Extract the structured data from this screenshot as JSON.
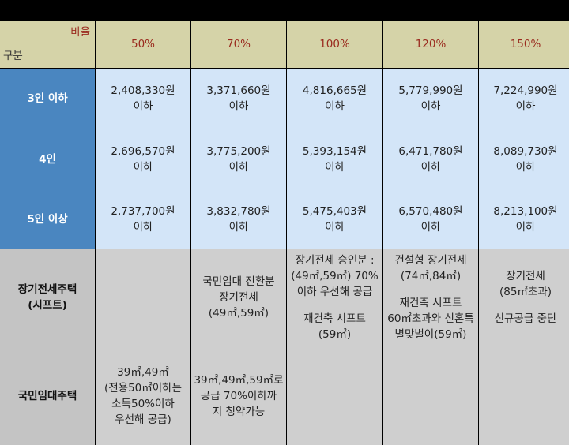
{
  "header": {
    "ratio_label": "비율",
    "category_label": "구분",
    "columns": [
      "50%",
      "70%",
      "100%",
      "120%",
      "150%"
    ]
  },
  "income_rows": [
    {
      "label": "3인 이하",
      "values": [
        [
          "2,408,330원",
          "이하"
        ],
        [
          "3,371,660원",
          "이하"
        ],
        [
          "4,816,665원",
          "이하"
        ],
        [
          "5,779,990원",
          "이하"
        ],
        [
          "7,224,990원",
          "이하"
        ]
      ]
    },
    {
      "label": "4인",
      "values": [
        [
          "2,696,570원",
          "이하"
        ],
        [
          "3,775,200원",
          "이하"
        ],
        [
          "5,393,154원",
          "이하"
        ],
        [
          "6,471,780원",
          "이하"
        ],
        [
          "8,089,730원",
          "이하"
        ]
      ]
    },
    {
      "label": "5인 이상",
      "values": [
        [
          "2,737,700원",
          "이하"
        ],
        [
          "3,832,780원",
          "이하"
        ],
        [
          "5,475,403원",
          "이하"
        ],
        [
          "6,570,480원",
          "이하"
        ],
        [
          "8,213,100원",
          "이하"
        ]
      ]
    }
  ],
  "shift_row": {
    "label_lines": [
      "장기전세주택",
      "(시프트)"
    ],
    "c70": [
      "국민임대 전환분",
      "장기전세",
      "(49㎡,59㎡)"
    ],
    "c100_a": [
      "장기전세 승인분 :",
      "(49㎡,59㎡) 70%",
      "이하 우선해 공급"
    ],
    "c100_b": [
      "재건축 시프트",
      "(59㎡)"
    ],
    "c120_a": [
      "건설형 장기전세",
      "(74㎡,84㎡)"
    ],
    "c120_b": [
      "재건축 시프트",
      "60㎡초과와 신혼특",
      "별맞벌이(59㎡)"
    ],
    "c150_a": [
      "장기전세",
      "(85㎡초과)"
    ],
    "c150_b": [
      "신규공급 중단"
    ]
  },
  "public_row": {
    "label": "국민임대주택",
    "c50": [
      "39㎡,49㎡",
      "(전용50㎡이하는",
      "소득50%이하",
      "우선해 공급)"
    ],
    "c70": [
      "39㎡,49㎡,59㎡로",
      "공급 70%이하까",
      "지 청약가능"
    ]
  },
  "colors": {
    "header_bg": "#d5d3a8",
    "header_text": "#9a2a1e",
    "rowhead_bg": "#4a86c0",
    "value_bg": "#d3e5f8",
    "gray_bg": "#cfcfcf"
  }
}
